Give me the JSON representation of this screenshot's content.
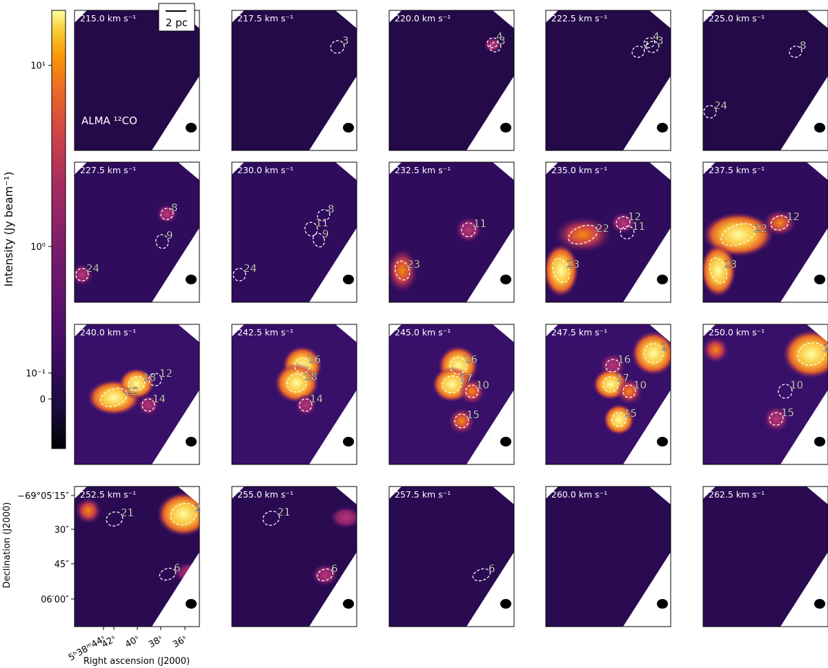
{
  "colorbar": {
    "label": "Intensity (Jy beam⁻¹)",
    "clim": [
      -0.2,
      20
    ],
    "ticks": [
      {
        "value": 10,
        "label": "10¹"
      },
      {
        "value": 1,
        "label": "10⁰"
      },
      {
        "value": 0.1,
        "label": "10⁻¹"
      },
      0
    ]
  },
  "scale_bar": "2 pc",
  "line_label": "ALMA ¹²CO",
  "panels": [
    {
      "velocity": "215.0 km s⁻¹",
      "clumps": []
    },
    {
      "velocity": "217.5 km s⁻¹",
      "clumps": [
        "3"
      ]
    },
    {
      "velocity": "220.0 km s⁻¹",
      "clumps": [
        "4",
        "3"
      ]
    },
    {
      "velocity": "222.5 km s⁻¹",
      "clumps": [
        "4",
        "7",
        "3"
      ]
    },
    {
      "velocity": "225.0 km s⁻¹",
      "clumps": [
        "8",
        "24"
      ]
    },
    {
      "velocity": "227.5 km s⁻¹",
      "clumps": [
        "8",
        "9",
        "24"
      ]
    },
    {
      "velocity": "230.0 km s⁻¹",
      "clumps": [
        "8",
        "11",
        "9",
        "24"
      ]
    },
    {
      "velocity": "232.5 km s⁻¹",
      "clumps": [
        "11",
        "23"
      ]
    },
    {
      "velocity": "235.0 km s⁻¹",
      "clumps": [
        "22",
        "12",
        "11",
        "23"
      ]
    },
    {
      "velocity": "237.5 km s⁻¹",
      "clumps": [
        "22",
        "12",
        "23"
      ]
    },
    {
      "velocity": "240.0 km s⁻¹",
      "clumps": [
        "22",
        "18",
        "12",
        "14"
      ]
    },
    {
      "velocity": "242.5 km s⁻¹",
      "clumps": [
        "16",
        "18",
        "14"
      ]
    },
    {
      "velocity": "245.0 km s⁻¹",
      "clumps": [
        "16",
        "17",
        "10",
        "15"
      ]
    },
    {
      "velocity": "247.5 km s⁻¹",
      "clumps": [
        "2",
        "16",
        "17",
        "10",
        "15"
      ]
    },
    {
      "velocity": "250.0 km s⁻¹",
      "clumps": [
        "2",
        "10",
        "15"
      ]
    },
    {
      "velocity": "252.5 km s⁻¹",
      "clumps": [
        "21",
        "2",
        "6"
      ]
    },
    {
      "velocity": "255.0 km s⁻¹",
      "clumps": [
        "21",
        "6"
      ]
    },
    {
      "velocity": "257.5 km s⁻¹",
      "clumps": [
        "6"
      ]
    },
    {
      "velocity": "260.0 km s⁻¹",
      "clumps": []
    },
    {
      "velocity": "262.5 km s⁻¹",
      "clumps": []
    }
  ],
  "axes": {
    "ylabel": "Declination (J2000)",
    "xlabel": "Right ascension (J2000)",
    "yticks": [
      "−69°05′15″",
      "30″",
      "45″",
      "06′00″"
    ],
    "xticks": [
      "5ʰ38ᵐ44ˢ",
      "42ˢ",
      "40ˢ",
      "38ˢ",
      "36ˢ"
    ]
  }
}
